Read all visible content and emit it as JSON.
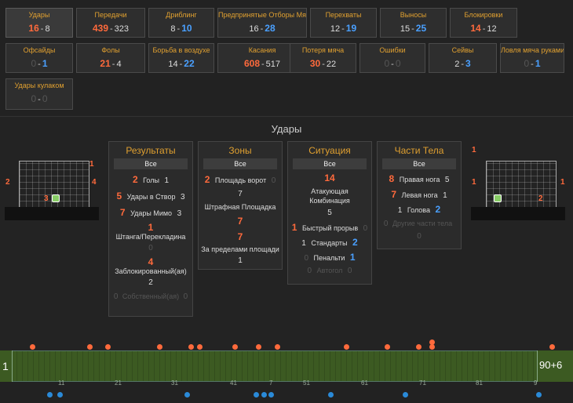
{
  "stats": [
    {
      "label": "Удары",
      "home": "16",
      "away": "8",
      "active": true
    },
    {
      "label": "Передачи",
      "home": "439",
      "away": "323"
    },
    {
      "label": "Дриблинг",
      "home": "8",
      "away": "10"
    },
    {
      "label": "Предпринятые Отборы Мяча",
      "home": "16",
      "away": "28"
    },
    {
      "label": "Перехваты",
      "home": "12",
      "away": "19"
    },
    {
      "label": "Выносы",
      "home": "15",
      "away": "25"
    },
    {
      "label": "Блокировки",
      "home": "14",
      "away": "12"
    },
    {
      "label": "Офсайды",
      "home": "0",
      "away": "1"
    },
    {
      "label": "Фолы",
      "home": "21",
      "away": "4"
    },
    {
      "label": "Борьба в воздухе",
      "home": "14",
      "away": "22"
    },
    {
      "label": "Касания",
      "home": "608",
      "away": "517"
    },
    {
      "label": "Потеря мяча",
      "home": "30",
      "away": "22"
    },
    {
      "label": "Ошибки",
      "home": "0",
      "away": "0"
    },
    {
      "label": "Сейвы",
      "home": "2",
      "away": "3"
    },
    {
      "label": "Ловля мяча руками",
      "home": "0",
      "away": "1"
    },
    {
      "label": "Удары кулаком",
      "home": "0",
      "away": "0"
    }
  ],
  "section_title": "Удары",
  "all_label": "Все",
  "results": {
    "title": "Результаты",
    "goals": {
      "label": "Голы",
      "home": "2",
      "away": "1"
    },
    "on_target": {
      "label": "Удары в Створ",
      "home": "5",
      "away": "3"
    },
    "off_target": {
      "label": "Удары Мимо",
      "home": "7",
      "away": "3"
    },
    "woodwork": {
      "label": "Штанга/Перекладина",
      "home": "1",
      "away": "0"
    },
    "blocked": {
      "label": "Заблокированный(ая)",
      "home": "4",
      "away": "2"
    },
    "own": {
      "label": "Собственный(ая)",
      "home": "0",
      "away": "0"
    }
  },
  "zones": {
    "title": "Зоны",
    "box": {
      "label": "Площадь ворот",
      "home": "2",
      "away": "0"
    },
    "penalty": {
      "label": "Штрафная Площадка",
      "home": "7",
      "away": "7"
    },
    "outside": {
      "label": "За пределами площади",
      "home": "7",
      "away": "1"
    }
  },
  "situation": {
    "title": "Ситуация",
    "open": {
      "label": "Атакующая Комбинация",
      "home": "14",
      "away": "5"
    },
    "fast": {
      "label": "Быстрый прорыв",
      "home": "1",
      "away": "0"
    },
    "set": {
      "label": "Стандарты",
      "home": "1",
      "away": "2"
    },
    "pen": {
      "label": "Пенальти",
      "home": "0",
      "away": "1"
    },
    "og": {
      "label": "Автогол",
      "home": "0",
      "away": "0"
    }
  },
  "body": {
    "title": "Части Тела",
    "right": {
      "label": "Правая нога",
      "home": "8",
      "away": "5"
    },
    "left": {
      "label": "Левая нога",
      "home": "7",
      "away": "1"
    },
    "head": {
      "label": "Голова",
      "home": "1",
      "away": "2"
    },
    "other": {
      "label": "Другие части тела",
      "home": "0",
      "away": "0"
    }
  },
  "goal_left": {
    "n1": "1",
    "n2": "2",
    "n3": "4",
    "n4": "3"
  },
  "goal_right": {
    "n1": "1",
    "n2": "1",
    "n3": "1",
    "n4": "2"
  },
  "timeline": {
    "start": "1",
    "end": "90+6",
    "ticks": [
      "11",
      "21",
      "31",
      "41",
      "7",
      "51",
      "61",
      "71",
      "81",
      "9"
    ]
  },
  "colors": {
    "home": "#ff6a3c",
    "away": "#4aa0ff",
    "label": "#e0a030"
  }
}
